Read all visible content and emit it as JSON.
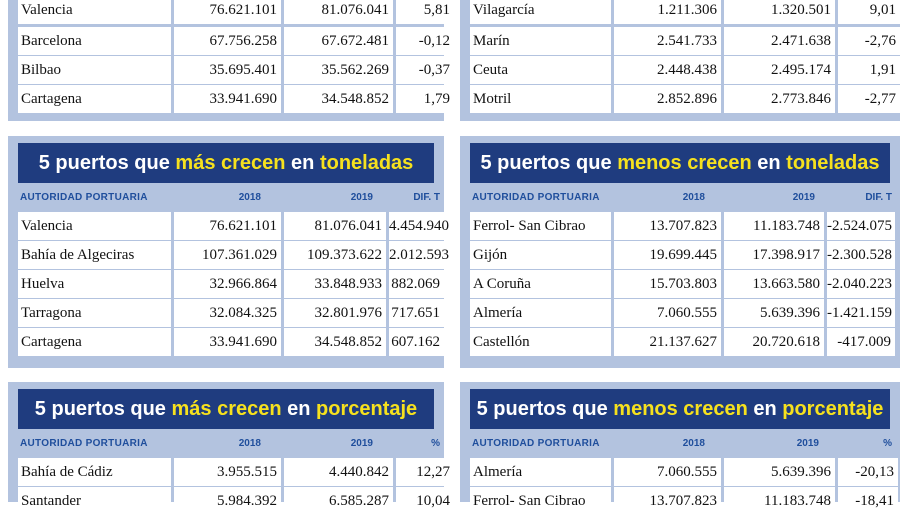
{
  "panels": [
    {
      "id": "top-left",
      "rows": [
        [
          "Valencia",
          "76.621.101",
          "81.076.041",
          "5,81"
        ],
        [
          "Barcelona",
          "67.756.258",
          "67.672.481",
          "-0,12"
        ],
        [
          "Bilbao",
          "35.695.401",
          "35.562.269",
          "-0,37"
        ],
        [
          "Cartagena",
          "33.941.690",
          "34.548.852",
          "1,79"
        ]
      ]
    },
    {
      "id": "top-right",
      "rows": [
        [
          "Vilagarcía",
          "1.211.306",
          "1.320.501",
          "9,01"
        ],
        [
          "Marín",
          "2.541.733",
          "2.471.638",
          "-2,76"
        ],
        [
          "Ceuta",
          "2.448.438",
          "2.495.174",
          "1,91"
        ],
        [
          "Motril",
          "2.852.896",
          "2.773.846",
          "-2,77"
        ]
      ]
    },
    {
      "id": "mid-left",
      "title": {
        "pre": "5 puertos que ",
        "hl1": "más crecen",
        "mid": " en ",
        "hl2": "toneladas"
      },
      "headers": [
        "AUTORIDAD PORTUARIA",
        "2018",
        "2019",
        "DIF. T"
      ],
      "rows": [
        [
          "Valencia",
          "76.621.101",
          "81.076.041",
          "4.454.940"
        ],
        [
          "Bahía de Algeciras",
          "107.361.029",
          "109.373.622",
          "2.012.593"
        ],
        [
          "Huelva",
          "32.966.864",
          "33.848.933",
          "882.069"
        ],
        [
          "Tarragona",
          "32.084.325",
          "32.801.976",
          "717.651"
        ],
        [
          "Cartagena",
          "33.941.690",
          "34.548.852",
          "607.162"
        ]
      ]
    },
    {
      "id": "mid-right",
      "title": {
        "pre": "5 puertos que ",
        "hl1": "menos crecen",
        "mid": " en ",
        "hl2": "toneladas"
      },
      "headers": [
        "AUTORIDAD PORTUARIA",
        "2018",
        "2019",
        "DIF. T"
      ],
      "rows": [
        [
          "Ferrol- San Cibrao",
          "13.707.823",
          "11.183.748",
          "-2.524.075"
        ],
        [
          "Gijón",
          "19.699.445",
          "17.398.917",
          "-2.300.528"
        ],
        [
          "A Coruña",
          "15.703.803",
          "13.663.580",
          "-2.040.223"
        ],
        [
          "Almería",
          "7.060.555",
          "5.639.396",
          "-1.421.159"
        ],
        [
          "Castellón",
          "21.137.627",
          "20.720.618",
          "-417.009"
        ]
      ]
    },
    {
      "id": "bottom-left",
      "title": {
        "pre": "5 puertos que ",
        "hl1": "más crecen",
        "mid": " en ",
        "hl2": "porcentaje"
      },
      "headers": [
        "AUTORIDAD PORTUARIA",
        "2018",
        "2019",
        "%"
      ],
      "rows": [
        [
          "Bahía de Cádiz",
          "3.955.515",
          "4.440.842",
          "12,27"
        ],
        [
          "Santander",
          "5.984.392",
          "6.585.287",
          "10,04"
        ]
      ]
    },
    {
      "id": "bottom-right",
      "title": {
        "pre": "5 puertos que ",
        "hl1": "menos crecen",
        "mid": " en ",
        "hl2": "porcentaje"
      },
      "headers": [
        "AUTORIDAD PORTUARIA",
        "2018",
        "2019",
        "%"
      ],
      "rows": [
        [
          "Almería",
          "7.060.555",
          "5.639.396",
          "-20,13"
        ],
        [
          "Ferrol- San Cibrao",
          "13.707.823",
          "11.183.748",
          "-18,41"
        ]
      ]
    }
  ]
}
